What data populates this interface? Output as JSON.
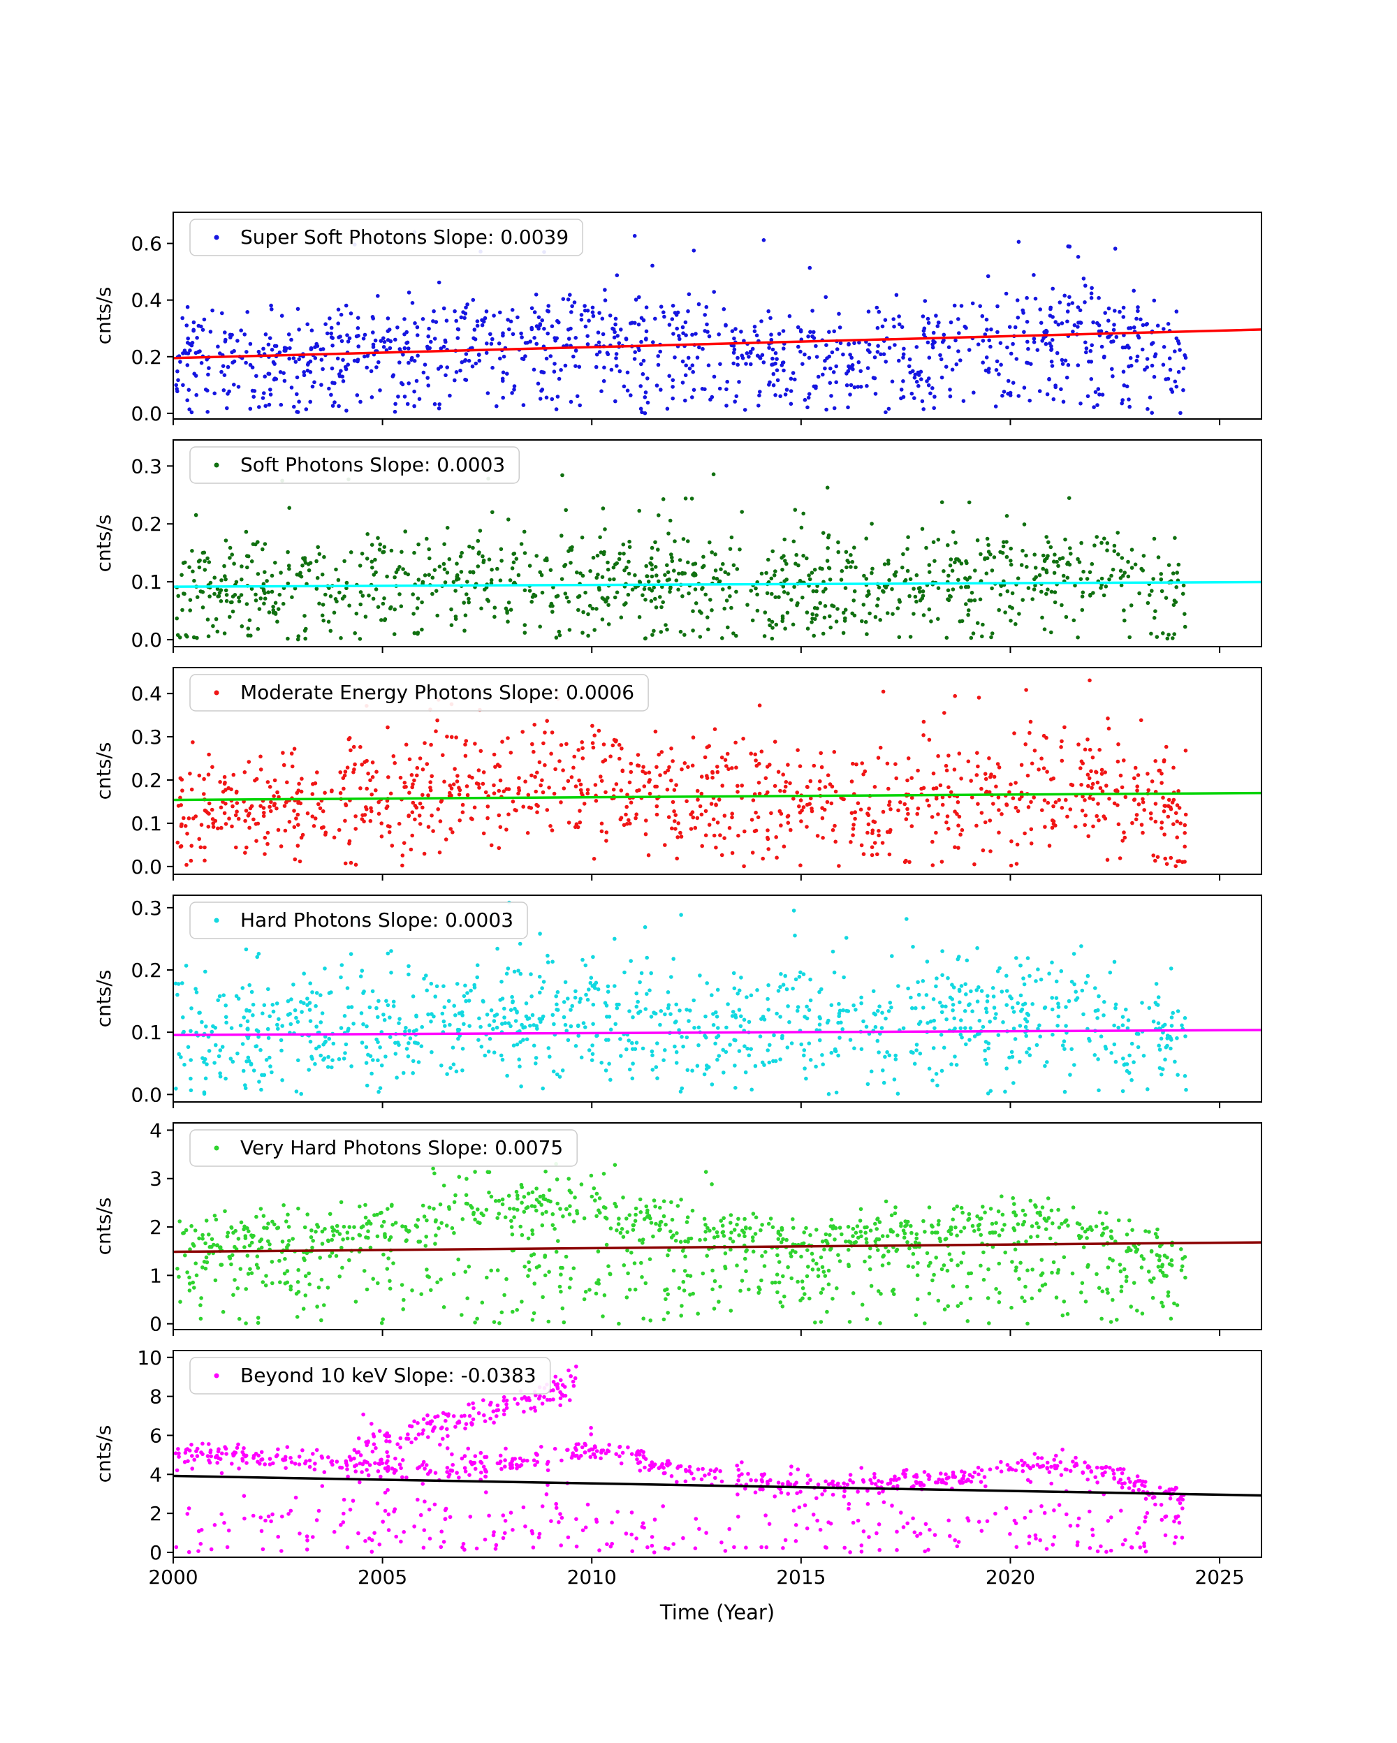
{
  "figure": {
    "background": "#ffffff"
  },
  "axes": {
    "xlabel": "Time (Year)",
    "xlim": [
      2000,
      2026
    ],
    "xticks": [
      2000,
      2005,
      2010,
      2015,
      2020,
      2025
    ],
    "xtick_labels": [
      "2000",
      "2005",
      "2010",
      "2015",
      "2020",
      "2025"
    ],
    "spine_color": "#000000"
  },
  "chart_data": [
    {
      "type": "scatter",
      "name": "super_soft_photons",
      "legend": "Super Soft Photons Slope: 0.0039",
      "slope": 0.0039,
      "ylabel": "cnts/s",
      "marker_color": "#1515e0",
      "trend_color": "#ff0000",
      "trend": {
        "x": [
          2000,
          2026
        ],
        "y": [
          0.195,
          0.296
        ]
      },
      "ylim": [
        -0.02,
        0.71
      ],
      "yticks": [
        0,
        0.2,
        0.4,
        0.6
      ],
      "ytick_labels": [
        "0.0",
        "0.2",
        "0.4",
        "0.6"
      ],
      "seed": 11,
      "components": [
        {
          "n": 980,
          "xrange": [
            2000.05,
            2024.2
          ],
          "sd": 0.085,
          "mean": [
            [
              2000,
              0.2
            ],
            [
              2003,
              0.21
            ],
            [
              2006,
              0.24
            ],
            [
              2008,
              0.27
            ],
            [
              2010,
              0.27
            ],
            [
              2012,
              0.25
            ],
            [
              2014,
              0.22
            ],
            [
              2016,
              0.21
            ],
            [
              2018,
              0.23
            ],
            [
              2019.5,
              0.27
            ],
            [
              2021,
              0.3
            ],
            [
              2022,
              0.29
            ],
            [
              2023,
              0.24
            ],
            [
              2024.2,
              0.2
            ]
          ]
        },
        {
          "n": 160,
          "xrange": [
            2000.05,
            2024.2
          ],
          "sd": 0.04,
          "mean": [
            [
              2000,
              0.06
            ],
            [
              2024.2,
              0.06
            ]
          ]
        },
        {
          "n": 14,
          "xrange": [
            2003,
            2023
          ],
          "sd": 0.05,
          "mean": [
            [
              2003,
              0.58
            ],
            [
              2023,
              0.58
            ]
          ]
        }
      ]
    },
    {
      "type": "scatter",
      "name": "soft_photons",
      "legend": "Soft Photons Slope: 0.0003",
      "slope": 0.0003,
      "ylabel": "cnts/s",
      "marker_color": "#107010",
      "trend_color": "#00ffff",
      "trend": {
        "x": [
          2000,
          2026
        ],
        "y": [
          0.0915,
          0.0995
        ]
      },
      "ylim": [
        -0.012,
        0.345
      ],
      "yticks": [
        0,
        0.1,
        0.2,
        0.3
      ],
      "ytick_labels": [
        "0.0",
        "0.1",
        "0.2",
        "0.3"
      ],
      "seed": 22,
      "components": [
        {
          "n": 1030,
          "xrange": [
            2000.05,
            2024.2
          ],
          "sd": 0.048,
          "mean": [
            [
              2000,
              0.085
            ],
            [
              2004,
              0.095
            ],
            [
              2007,
              0.1
            ],
            [
              2010,
              0.1
            ],
            [
              2013,
              0.088
            ],
            [
              2016,
              0.085
            ],
            [
              2019,
              0.1
            ],
            [
              2021,
              0.115
            ],
            [
              2022.5,
              0.1
            ],
            [
              2024.2,
              0.075
            ]
          ]
        },
        {
          "n": 18,
          "xrange": [
            2001,
            2023
          ],
          "sd": 0.045,
          "mean": [
            [
              2001,
              0.24
            ],
            [
              2023,
              0.24
            ]
          ]
        }
      ]
    },
    {
      "type": "scatter",
      "name": "moderate_energy_photons",
      "legend": "Moderate Energy Photons Slope: 0.0006",
      "slope": 0.0006,
      "ylabel": "cnts/s",
      "marker_color": "#f01515",
      "trend_color": "#00d400",
      "trend": {
        "x": [
          2000,
          2026
        ],
        "y": [
          0.154,
          0.17
        ]
      },
      "ylim": [
        -0.018,
        0.46
      ],
      "yticks": [
        0,
        0.1,
        0.2,
        0.3,
        0.4
      ],
      "ytick_labels": [
        "0.0",
        "0.1",
        "0.2",
        "0.3",
        "0.4"
      ],
      "seed": 33,
      "components": [
        {
          "n": 1040,
          "xrange": [
            2000.05,
            2024.2
          ],
          "sd": 0.07,
          "mean": [
            [
              2000,
              0.14
            ],
            [
              2003,
              0.145
            ],
            [
              2005,
              0.16
            ],
            [
              2007,
              0.185
            ],
            [
              2009,
              0.19
            ],
            [
              2011,
              0.18
            ],
            [
              2013,
              0.155
            ],
            [
              2015,
              0.145
            ],
            [
              2017,
              0.15
            ],
            [
              2019,
              0.16
            ],
            [
              2021,
              0.175
            ],
            [
              2022.5,
              0.16
            ],
            [
              2024.2,
              0.115
            ]
          ]
        },
        {
          "n": 10,
          "xrange": [
            2004,
            2022.5
          ],
          "sd": 0.025,
          "mean": [
            [
              2004,
              0.4
            ],
            [
              2022.5,
              0.4
            ]
          ]
        }
      ]
    },
    {
      "type": "scatter",
      "name": "hard_photons",
      "legend": "Hard Photons Slope: 0.0003",
      "slope": 0.0003,
      "ylabel": "cnts/s",
      "marker_color": "#12d8e0",
      "trend_color": "#ff00ff",
      "trend": {
        "x": [
          2000,
          2026
        ],
        "y": [
          0.0955,
          0.1035
        ]
      },
      "ylim": [
        -0.012,
        0.32
      ],
      "yticks": [
        0,
        0.1,
        0.2,
        0.3
      ],
      "ytick_labels": [
        "0.0",
        "0.1",
        "0.2",
        "0.3"
      ],
      "seed": 44,
      "components": [
        {
          "n": 1040,
          "xrange": [
            2000.05,
            2024.2
          ],
          "sd": 0.05,
          "mean": [
            [
              2000,
              0.095
            ],
            [
              2004,
              0.1
            ],
            [
              2007,
              0.12
            ],
            [
              2009,
              0.125
            ],
            [
              2011,
              0.115
            ],
            [
              2013,
              0.1
            ],
            [
              2015,
              0.1
            ],
            [
              2017,
              0.105
            ],
            [
              2019,
              0.115
            ],
            [
              2021,
              0.13
            ],
            [
              2022.5,
              0.11
            ],
            [
              2024.2,
              0.08
            ]
          ]
        },
        {
          "n": 12,
          "xrange": [
            2004,
            2020
          ],
          "sd": 0.03,
          "mean": [
            [
              2004,
              0.26
            ],
            [
              2020,
              0.26
            ]
          ]
        }
      ]
    },
    {
      "type": "scatter",
      "name": "very_hard_photons",
      "legend": "Very Hard Photons Slope: 0.0075",
      "slope": 0.0075,
      "ylabel": "cnts/s",
      "marker_color": "#2fd32f",
      "trend_color": "#8b0000",
      "trend": {
        "x": [
          2000,
          2026
        ],
        "y": [
          1.487,
          1.682
        ]
      },
      "ylim": [
        -0.12,
        4.15
      ],
      "yticks": [
        0,
        1,
        2,
        3,
        4
      ],
      "ytick_labels": [
        "0",
        "1",
        "2",
        "3",
        "4"
      ],
      "seed": 55,
      "components": [
        {
          "n": 690,
          "xrange": [
            2000.05,
            2024.2
          ],
          "sd": 0.28,
          "mean": [
            [
              2000,
              1.75
            ],
            [
              2003,
              1.75
            ],
            [
              2005,
              1.95
            ],
            [
              2007,
              2.35
            ],
            [
              2008.5,
              2.45
            ],
            [
              2010,
              2.35
            ],
            [
              2011.5,
              2.1
            ],
            [
              2013,
              1.85
            ],
            [
              2015,
              1.75
            ],
            [
              2017,
              1.8
            ],
            [
              2019,
              1.95
            ],
            [
              2020.5,
              2.1
            ],
            [
              2022,
              2.0
            ],
            [
              2023.2,
              1.5
            ],
            [
              2024.2,
              1.3
            ]
          ]
        },
        {
          "n": 430,
          "xrange": [
            2000.05,
            2024.2
          ],
          "sd": 0.55,
          "mean": [
            [
              2000,
              0.9
            ],
            [
              2024.2,
              0.9
            ]
          ]
        },
        {
          "n": 12,
          "xrange": [
            2006,
            2013
          ],
          "sd": 0.12,
          "mean": [
            [
              2006,
              3.15
            ],
            [
              2013,
              3.15
            ]
          ]
        }
      ]
    },
    {
      "type": "scatter",
      "name": "beyond_10_kev",
      "legend": "Beyond 10 keV Slope: -0.0383",
      "slope": -0.0383,
      "ylabel": "cnts/s",
      "marker_color": "#ff00ff",
      "trend_color": "#000000",
      "trend": {
        "x": [
          2000,
          2026
        ],
        "y": [
          3.92,
          2.92
        ]
      },
      "ylim": [
        -0.25,
        10.35
      ],
      "yticks": [
        0,
        2,
        4,
        6,
        8,
        10
      ],
      "ytick_labels": [
        "0",
        "2",
        "4",
        "6",
        "8",
        "10"
      ],
      "seed": 66,
      "components": [
        {
          "n": 620,
          "xrange": [
            2000.05,
            2024.2
          ],
          "sd": 0.3,
          "mean": [
            [
              2000,
              5.0
            ],
            [
              2001.5,
              5.0
            ],
            [
              2003,
              4.8
            ],
            [
              2004,
              4.6
            ],
            [
              2005,
              4.3
            ],
            [
              2006,
              4.2
            ],
            [
              2007,
              4.4
            ],
            [
              2008,
              4.6
            ],
            [
              2009,
              4.9
            ],
            [
              2010,
              5.3
            ],
            [
              2010.8,
              5.0
            ],
            [
              2012,
              4.3
            ],
            [
              2013,
              3.8
            ],
            [
              2014,
              3.65
            ],
            [
              2015,
              3.5
            ],
            [
              2016,
              3.4
            ],
            [
              2017,
              3.55
            ],
            [
              2018,
              3.7
            ],
            [
              2019,
              3.9
            ],
            [
              2020,
              4.35
            ],
            [
              2021,
              4.45
            ],
            [
              2022,
              4.2
            ],
            [
              2022.8,
              3.8
            ],
            [
              2023.5,
              3.1
            ],
            [
              2024.2,
              2.75
            ]
          ]
        },
        {
          "n": 150,
          "xrange": [
            2004.3,
            2009.7
          ],
          "sd": 0.4,
          "mean": [
            [
              2004.3,
              5.6
            ],
            [
              2005,
              6.0
            ],
            [
              2005.8,
              6.3
            ],
            [
              2006.5,
              6.6
            ],
            [
              2007.3,
              7.2
            ],
            [
              2008,
              7.6
            ],
            [
              2008.8,
              8.1
            ],
            [
              2009.3,
              8.5
            ],
            [
              2009.7,
              8.9
            ]
          ]
        },
        {
          "n": 300,
          "xrange": [
            2000.05,
            2024.2
          ],
          "sd": 1.0,
          "mean": [
            [
              2000,
              1.3
            ],
            [
              2024.2,
              1.3
            ]
          ]
        }
      ]
    }
  ]
}
